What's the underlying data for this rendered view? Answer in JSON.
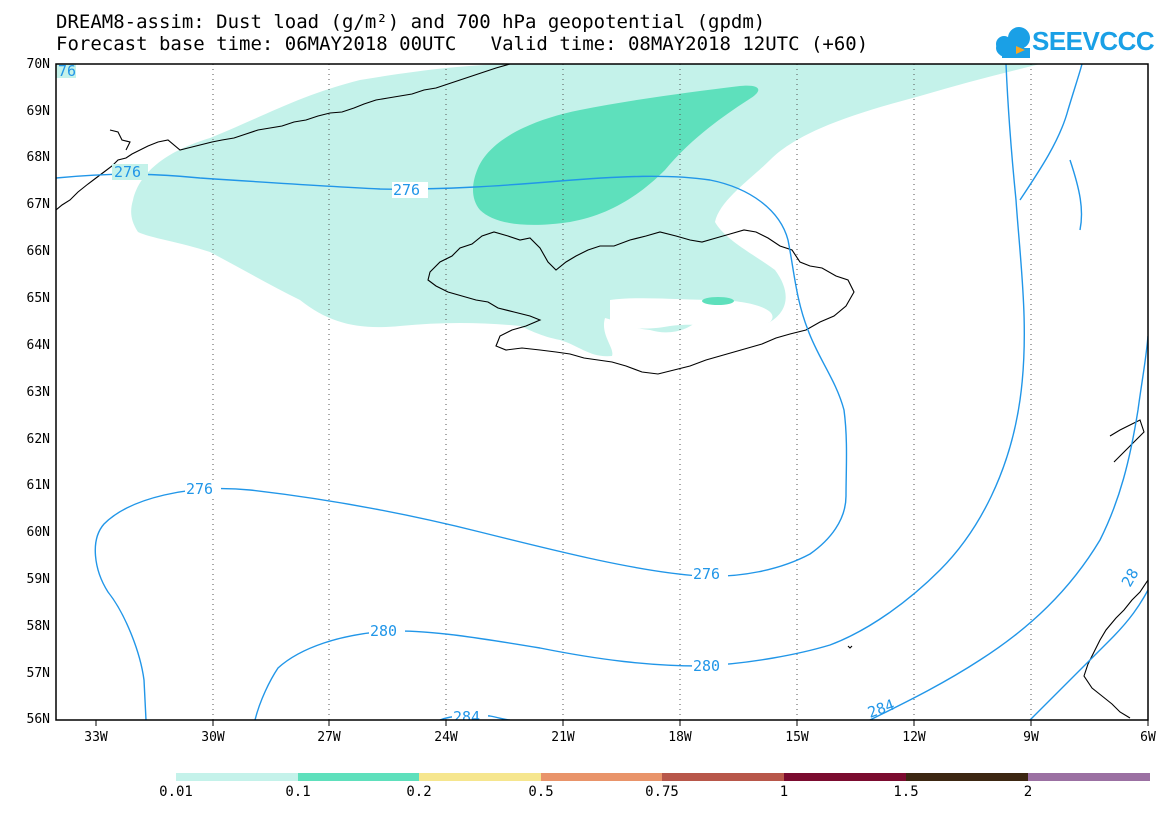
{
  "title_line1": "DREAM8-assim: Dust load (g/m²) and 700 hPa geopotential (gpdm)",
  "title_line2": "Forecast base time: 06MAY2018 00UTC   Valid time: 08MAY2018 12UTC (+60)",
  "logo": {
    "text": "SEEVCCC",
    "icon": "cloud-icon",
    "color": "#1aa0e6"
  },
  "lat_labels": [
    "70N",
    "69N",
    "68N",
    "67N",
    "66N",
    "65N",
    "64N",
    "63N",
    "62N",
    "61N",
    "60N",
    "59N",
    "58N",
    "57N",
    "56N"
  ],
  "lon_labels": [
    "33W",
    "30W",
    "27W",
    "24W",
    "21W",
    "18W",
    "15W",
    "12W",
    "9W",
    "6W"
  ],
  "contour_labels": [
    "76",
    "276",
    "276",
    "276",
    "276",
    "280",
    "280",
    "284",
    "284",
    "28"
  ],
  "contour_color": "#2196e8",
  "colorbar": {
    "labels": [
      "0.01",
      "0.1",
      "0.2",
      "0.5",
      "0.75",
      "1",
      "1.5",
      "2"
    ],
    "colors": [
      "#c4f2ea",
      "#5ee0bc",
      "#f6e68e",
      "#e9946a",
      "#b8574a",
      "#a54747",
      "#7b0b2f",
      "#3c2712",
      "#9b70a2"
    ]
  },
  "dust_colors": {
    "light": "#c4f2ea",
    "medium": "#5ee0bc"
  }
}
